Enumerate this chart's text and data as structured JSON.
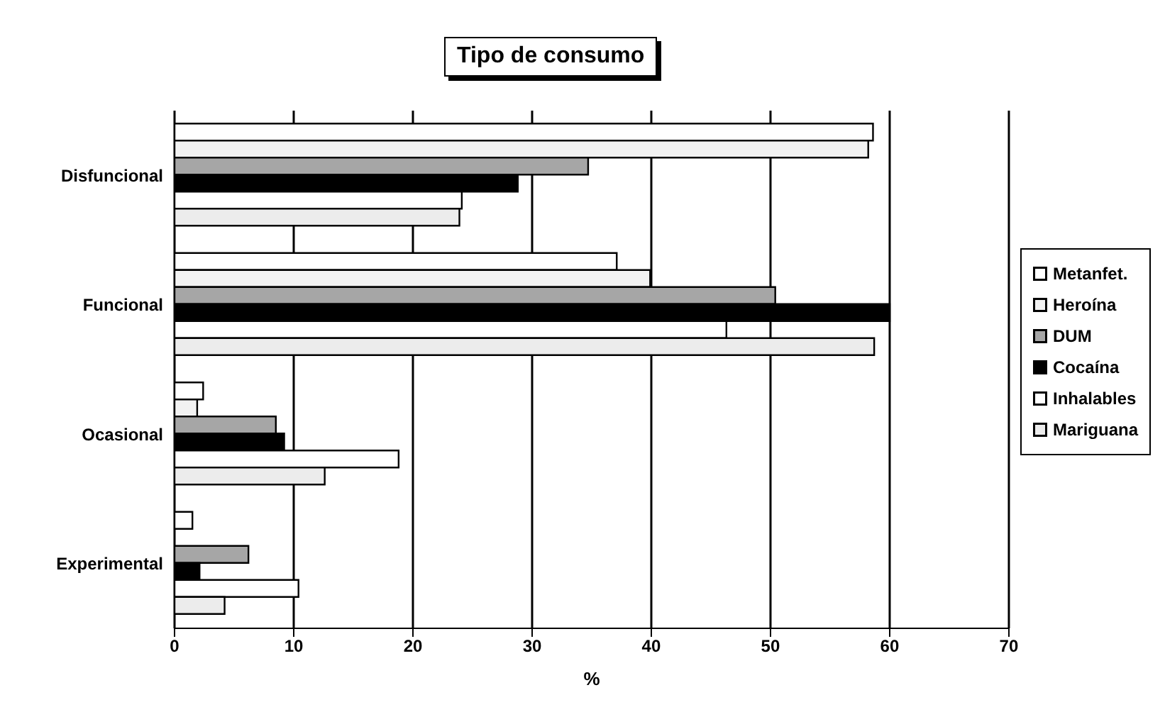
{
  "chart_data": {
    "type": "bar",
    "orientation": "horizontal",
    "title": "Tipo de consumo",
    "xlabel": "%",
    "categories": [
      "Disfuncional",
      "Funcional",
      "Ocasional",
      "Experimental"
    ],
    "series": [
      {
        "name": "Metanfet.",
        "color": "#ffffff",
        "values": [
          58.6,
          37.1,
          2.4,
          1.5
        ]
      },
      {
        "name": "Heroína",
        "color": "#f2f2f2",
        "values": [
          58.2,
          39.9,
          1.9,
          0
        ]
      },
      {
        "name": "DUM",
        "color": "#a6a6a6",
        "values": [
          34.7,
          50.4,
          8.5,
          6.2
        ]
      },
      {
        "name": "Cocaína",
        "color": "#000000",
        "values": [
          28.8,
          60,
          9.2,
          2.1
        ]
      },
      {
        "name": "Inhalables",
        "color": "#ffffff",
        "values": [
          24.1,
          46.3,
          18.8,
          10.4
        ]
      },
      {
        "name": "Mariguana",
        "color": "#ececec",
        "values": [
          23.9,
          58.7,
          12.6,
          4.2
        ]
      }
    ],
    "xlim": [
      0,
      70
    ],
    "xticks": [
      0,
      10,
      20,
      30,
      40,
      50,
      60,
      70
    ],
    "grid": "x",
    "legend": "right"
  }
}
